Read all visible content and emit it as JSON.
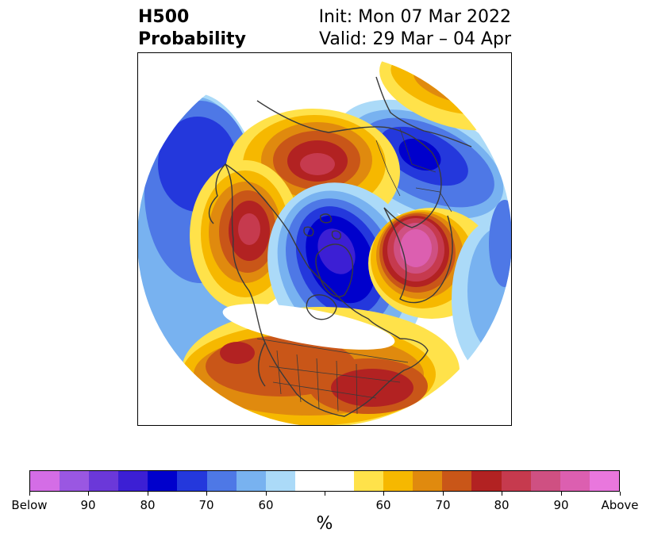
{
  "title": {
    "left_line1": "H500",
    "left_line2": "Probability",
    "right_line1": "Init: Mon 07 Mar 2022",
    "right_line2": "Valid: 29 Mar – 04 Apr"
  },
  "colorbar": {
    "colors": [
      "#d46de6",
      "#9a57e2",
      "#6b38d9",
      "#3c1fd4",
      "#0000cc",
      "#2438dc",
      "#4e78e6",
      "#78b2f0",
      "#abdaf8",
      "#ffffff",
      "#ffffff",
      "#ffe24a",
      "#f6b800",
      "#e08a0e",
      "#c95618",
      "#b22222",
      "#c63a4e",
      "#cf5082",
      "#dc5fb0",
      "#e977dd"
    ],
    "tick_labels": [
      "Below",
      "90",
      "80",
      "70",
      "60",
      "",
      "60",
      "70",
      "80",
      "90",
      "Above"
    ],
    "units": "%"
  },
  "map": {
    "projection": "north polar stereographic",
    "anomalies": [
      {
        "region": "Gulf of Alaska / NE Pacific",
        "sign": "below"
      },
      {
        "region": "Bering Sea",
        "sign": "above"
      },
      {
        "region": "Arctic Ocean / Canadian Archipelago",
        "sign": "below"
      },
      {
        "region": "Siberia",
        "sign": "below"
      },
      {
        "region": "Scandinavia / NW Russia",
        "sign": "above"
      },
      {
        "region": "Western Pacific / Japan",
        "sign": "above"
      },
      {
        "region": "Southern / Eastern United States",
        "sign": "above"
      },
      {
        "region": "North Atlantic",
        "sign": "below"
      }
    ]
  }
}
